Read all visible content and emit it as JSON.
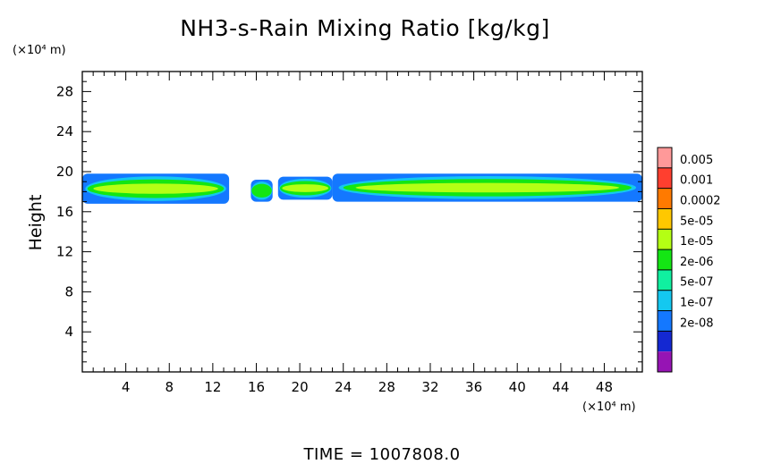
{
  "chart_data": {
    "type": "heatmap",
    "title": "NH3-s-Rain Mixing Ratio [kg/kg]",
    "ylabel": "Height",
    "x_unit": "(×10⁴ m)",
    "y_unit": "(×10⁴ m)",
    "xlim": [
      0,
      51.5
    ],
    "ylim": [
      0,
      30
    ],
    "x_ticks": [
      4,
      8,
      12,
      16,
      20,
      24,
      28,
      32,
      36,
      40,
      44,
      48
    ],
    "y_ticks": [
      4,
      8,
      12,
      16,
      20,
      24,
      28
    ],
    "colorbar": {
      "labels": [
        "0.005",
        "0.001",
        "0.0002",
        "5e-05",
        "1e-05",
        "2e-06",
        "5e-07",
        "1e-07",
        "2e-08"
      ],
      "colors": [
        "#ff9999",
        "#ff3f2f",
        "#ff7a00",
        "#ffc800",
        "#b4ff14",
        "#14e614",
        "#10f0a0",
        "#14c8f0",
        "#1478ff",
        "#1428d2",
        "#9614b4"
      ]
    },
    "series": [
      {
        "region": [
          0,
          13.5
        ],
        "level_outer": "1e-07",
        "level_core": "5e-05",
        "y_range": [
          16.8,
          19.8
        ]
      },
      {
        "region": [
          15.5,
          17.5
        ],
        "level_outer": "1e-07",
        "level_core": "1e-05",
        "y_range": [
          17,
          19.2
        ]
      },
      {
        "region": [
          18,
          23
        ],
        "level_outer": "1e-07",
        "level_core": "5e-05",
        "y_range": [
          17.2,
          19.5
        ]
      },
      {
        "region": [
          23,
          51.5
        ],
        "level_outer": "1e-07",
        "level_core": "5e-05",
        "y_range": [
          17,
          19.8
        ]
      }
    ],
    "footer": "TIME  =  1007808.0"
  }
}
